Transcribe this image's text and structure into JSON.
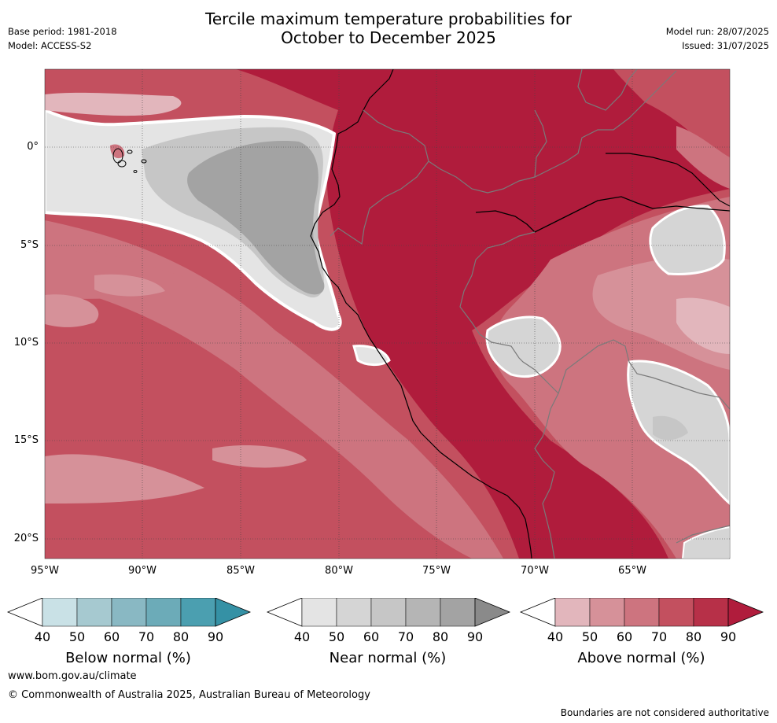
{
  "title_line1": "Tercile maximum temperature probabilities for",
  "title_line2": "October to December 2025",
  "base_period": "Base period: 1981-2018",
  "model": "Model: ACCESS-S2",
  "model_run": "Model run: 28/07/2025",
  "issued": "Issued: 31/07/2025",
  "lat_labels": [
    "0°",
    "5°S",
    "10°S",
    "15°S",
    "20°S"
  ],
  "lon_labels": [
    "95°W",
    "90°W",
    "85°W",
    "80°W",
    "75°W",
    "70°W",
    "65°W"
  ],
  "colorbars": [
    {
      "title": "Below normal (%)",
      "ticks": [
        "40",
        "50",
        "60",
        "70",
        "80",
        "90"
      ],
      "colors": [
        "#ffffff",
        "#c9e1e6",
        "#a6c9d0",
        "#89b8c3",
        "#6cabb8",
        "#4b9fb0",
        "#3591a5"
      ]
    },
    {
      "title": "Near normal (%)",
      "ticks": [
        "40",
        "50",
        "60",
        "70",
        "80",
        "90"
      ],
      "colors": [
        "#ffffff",
        "#e4e4e4",
        "#d5d5d5",
        "#c6c6c6",
        "#b5b5b5",
        "#a3a3a3",
        "#8a8a8a"
      ]
    },
    {
      "title": "Above normal (%)",
      "ticks": [
        "40",
        "50",
        "60",
        "70",
        "80",
        "90"
      ],
      "colors": [
        "#ffffff",
        "#e2b6bc",
        "#d69199",
        "#cd747f",
        "#c3505f",
        "#b73048",
        "#b01c3c"
      ]
    }
  ],
  "website": "www.bom.gov.au/climate",
  "copyright": "© Commonwealth of Australia 2025, Australian Bureau of Meteorology",
  "disclaimer": "Boundaries are not considered authoritative"
}
